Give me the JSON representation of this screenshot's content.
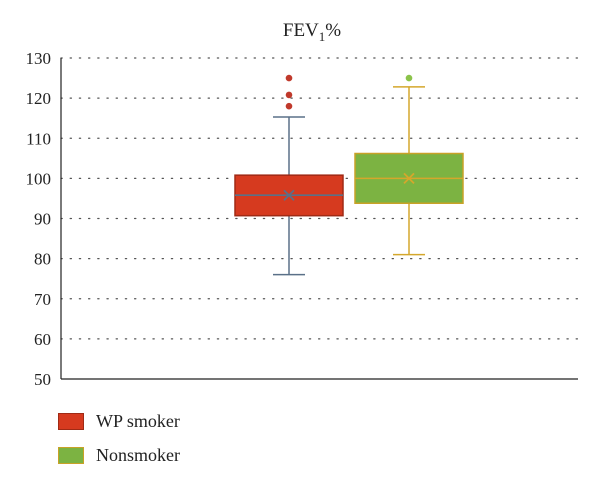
{
  "chart_data": {
    "type": "box",
    "title_main": "FEV",
    "title_sub": "1",
    "title_suffix": "%",
    "ylim": [
      50,
      130
    ],
    "y_ticks": [
      "50",
      "60",
      "70",
      "80",
      "90",
      "100",
      "110",
      "120",
      "130"
    ],
    "grid": "dotted horizontal",
    "legend_position": "bottom-left",
    "series": [
      {
        "name": "WP smoker",
        "fill": "#d63a1f",
        "stroke": "#a02a15",
        "whisker_color": "#5a7088",
        "min": 76,
        "q1": 90.7,
        "median": 95.8,
        "mean": 95.8,
        "q3": 100.8,
        "max": 115.3,
        "outliers": [
          118,
          120.8,
          125
        ],
        "outlier_color": "#c0392b"
      },
      {
        "name": "Nonsmoker",
        "fill": "#7cb342",
        "stroke": "#c9a227",
        "whisker_color": "#d4a72c",
        "min": 81,
        "q1": 93.8,
        "median": 100,
        "mean": 100,
        "q3": 106.2,
        "max": 122.8,
        "outliers": [
          125
        ],
        "outlier_color": "#8bc34a"
      }
    ]
  }
}
